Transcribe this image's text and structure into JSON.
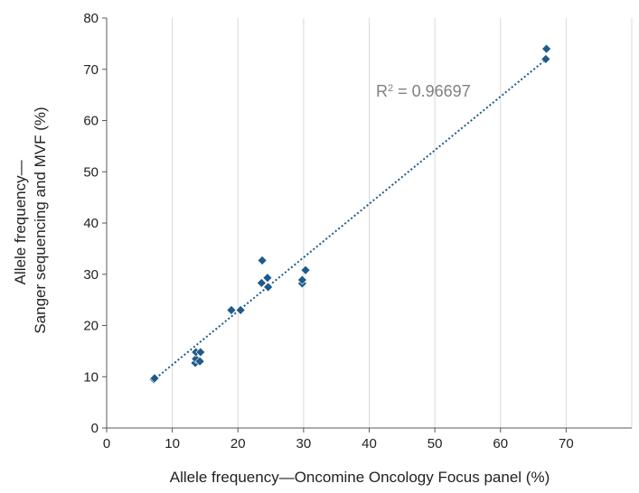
{
  "chart_data": {
    "type": "scatter",
    "title": "",
    "xlabel": "Allele frequency—Oncomine Oncology Focus panel (%)",
    "ylabel_lines": [
      "Allele frequency—",
      "Sanger sequencing and MVF (%)"
    ],
    "xlim": [
      0,
      80
    ],
    "ylim": [
      0,
      80
    ],
    "x_ticks": [
      0,
      10,
      20,
      30,
      40,
      50,
      60,
      70
    ],
    "y_ticks": [
      0,
      10,
      20,
      30,
      40,
      50,
      60,
      70,
      80
    ],
    "grid": "vertical",
    "marker": "diamond",
    "marker_color": "#1f5a8a",
    "trendline": {
      "type": "linear",
      "style": "dotted",
      "color": "#1f5a8a",
      "x_start": 7,
      "y_start": 9.2,
      "x_end": 67,
      "y_end": 72,
      "label_prefix": "R",
      "label_sup": "2",
      "label_value": " = 0.96697"
    },
    "points": [
      {
        "x": 7.2,
        "y": 9.5
      },
      {
        "x": 7.3,
        "y": 9.7
      },
      {
        "x": 13.5,
        "y": 12.7
      },
      {
        "x": 13.6,
        "y": 13.5
      },
      {
        "x": 13.6,
        "y": 14.8
      },
      {
        "x": 14.2,
        "y": 13.0
      },
      {
        "x": 14.3,
        "y": 14.8
      },
      {
        "x": 19.0,
        "y": 23.0
      },
      {
        "x": 20.4,
        "y": 23.0
      },
      {
        "x": 23.6,
        "y": 28.3
      },
      {
        "x": 23.7,
        "y": 32.7
      },
      {
        "x": 24.5,
        "y": 29.3
      },
      {
        "x": 24.6,
        "y": 27.5
      },
      {
        "x": 29.8,
        "y": 28.2
      },
      {
        "x": 29.8,
        "y": 28.9
      },
      {
        "x": 30.3,
        "y": 30.8
      },
      {
        "x": 66.9,
        "y": 72.0
      },
      {
        "x": 67.0,
        "y": 74.0
      }
    ]
  }
}
